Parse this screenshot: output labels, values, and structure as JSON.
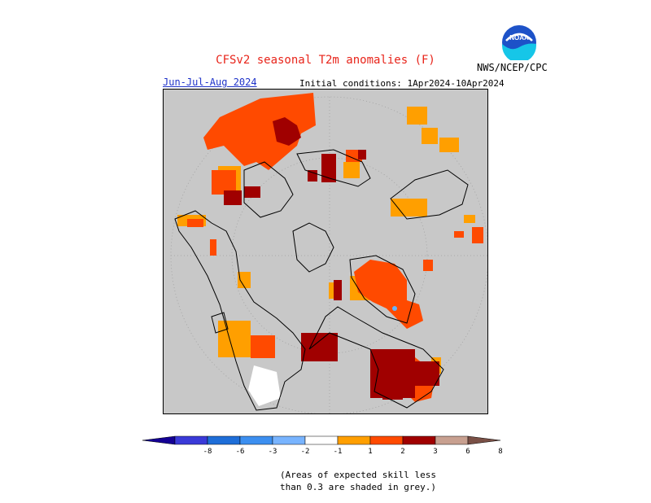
{
  "header": {
    "title": "CFSv2 seasonal T2m anomalies (F)",
    "season": "Jun-Jul-Aug 2024",
    "initial_conditions": "Initial conditions: 1Apr2024-10Apr2024",
    "agency": "NWS/NCEP/CPC",
    "logo_text": "NOAA"
  },
  "colors": {
    "mask_grey": "#c8c8c8",
    "coast": "#000000",
    "grid": "#a0a0a0",
    "white": "#ffffff",
    "orange": "#ff9f00",
    "red_orange": "#ff4a00",
    "dark_red": "#a00000",
    "brown_pink": "#c8a090",
    "light_blue": "#64b4ff",
    "dark_blue": "#2030d0",
    "noaa_blue": "#1d52c8",
    "noaa_cyan": "#16c6e8",
    "title_red": "#e8241a",
    "season_blue": "#1f33c9"
  },
  "colorbar": {
    "labels": [
      "-8",
      "-6",
      "-3",
      "-2",
      "-1",
      "1",
      "2",
      "3",
      "6",
      "8"
    ],
    "bins": [
      {
        "color": "#140094"
      },
      {
        "color": "#3a3ad8"
      },
      {
        "color": "#1e6ed8"
      },
      {
        "color": "#3c8ff0"
      },
      {
        "color": "#78b4ff"
      },
      {
        "color": "#ffffff"
      },
      {
        "color": "#ff9f00"
      },
      {
        "color": "#ff4a00"
      },
      {
        "color": "#a00000"
      },
      {
        "color": "#c8a090"
      },
      {
        "color": "#7a5046"
      }
    ]
  },
  "footnote": {
    "line1": "(Areas of expected skill less",
    "line2": "than 0.3 are shaded in grey.)"
  }
}
